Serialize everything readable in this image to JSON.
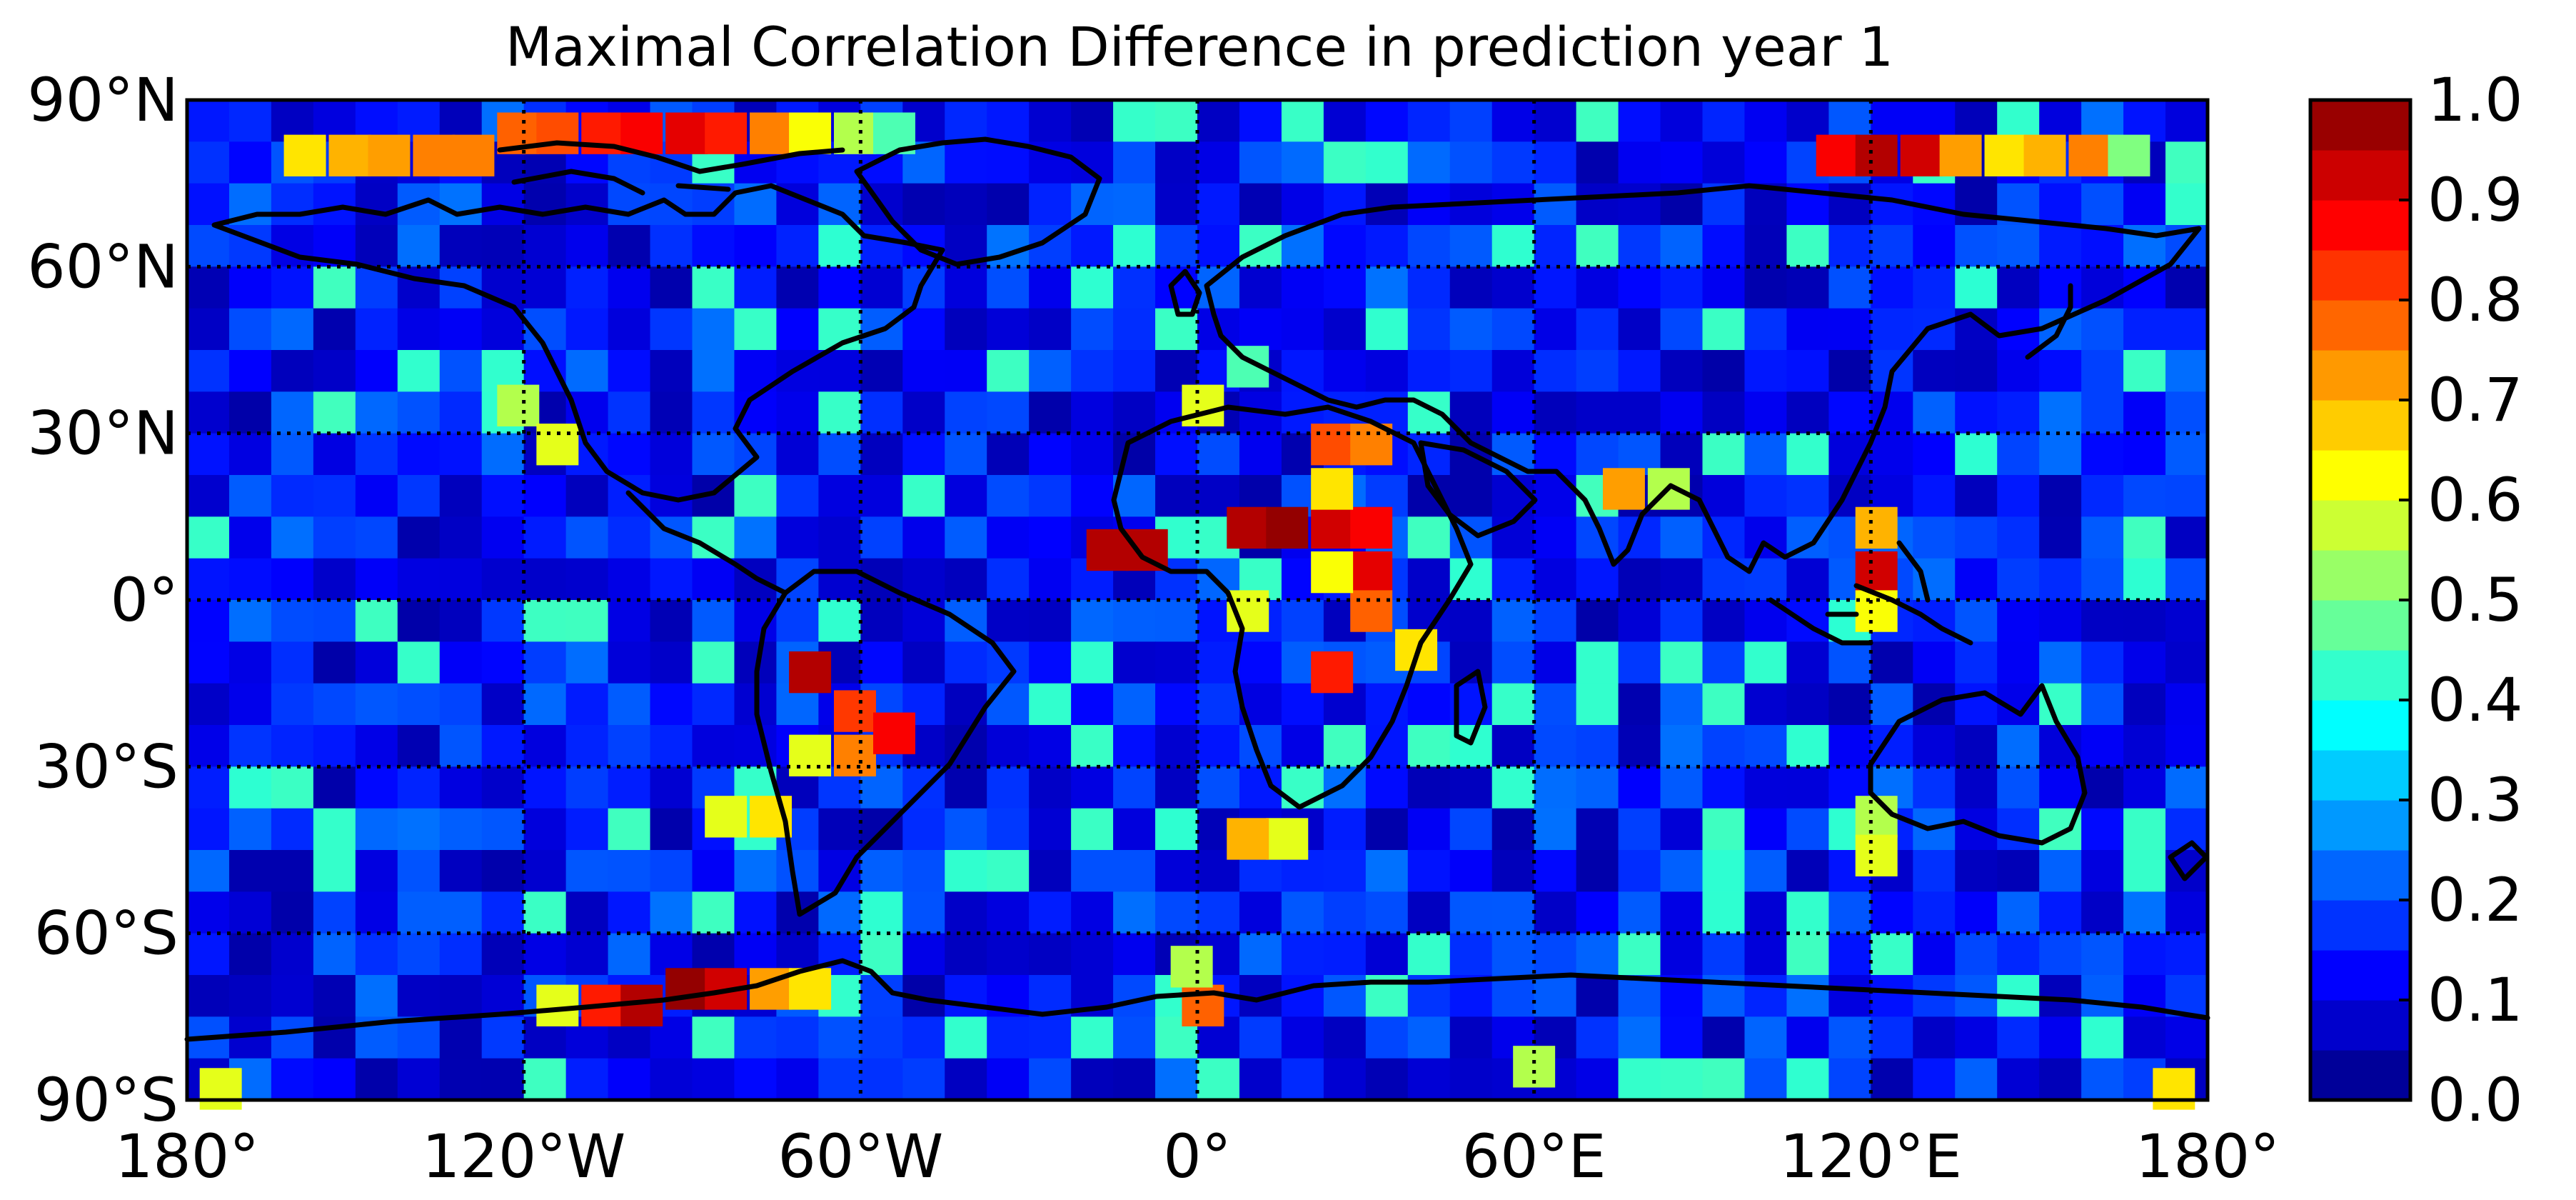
{
  "chart_data": {
    "type": "heatmap",
    "title": "Maximal Correlation Difference in prediction year 1",
    "xlabel": "",
    "ylabel": "",
    "x_range": [
      -180,
      180
    ],
    "y_range": [
      -90,
      90
    ],
    "x_ticks": [
      {
        "value": -180,
        "label": "180°"
      },
      {
        "value": -120,
        "label": "120°W"
      },
      {
        "value": -60,
        "label": "60°W"
      },
      {
        "value": 0,
        "label": "0°"
      },
      {
        "value": 60,
        "label": "60°E"
      },
      {
        "value": 120,
        "label": "120°E"
      },
      {
        "value": 180,
        "label": "180°"
      }
    ],
    "y_ticks": [
      {
        "value": 90,
        "label": "90°N"
      },
      {
        "value": 60,
        "label": "60°N"
      },
      {
        "value": 30,
        "label": "30°N"
      },
      {
        "value": 0,
        "label": "0°"
      },
      {
        "value": -30,
        "label": "30°S"
      },
      {
        "value": -60,
        "label": "60°S"
      },
      {
        "value": -90,
        "label": "90°S"
      }
    ],
    "grid": true,
    "colormap": "jet",
    "colorbar": {
      "vmin": 0.0,
      "vmax": 1.0,
      "n_levels": 20,
      "position": "right",
      "ticks": [
        {
          "value": 0.0,
          "label": "0.0"
        },
        {
          "value": 0.1,
          "label": "0.1"
        },
        {
          "value": 0.2,
          "label": "0.2"
        },
        {
          "value": 0.3,
          "label": "0.3"
        },
        {
          "value": 0.4,
          "label": "0.4"
        },
        {
          "value": 0.5,
          "label": "0.5"
        },
        {
          "value": 0.6,
          "label": "0.6"
        },
        {
          "value": 0.7,
          "label": "0.7"
        },
        {
          "value": 0.8,
          "label": "0.8"
        },
        {
          "value": 0.9,
          "label": "0.9"
        },
        {
          "value": 1.0,
          "label": "1.0"
        }
      ]
    },
    "grid_cell_degrees": 7.5,
    "background_level": 0.15,
    "highlighted_cells": [
      {
        "lon": -159,
        "lat": 80,
        "value": 0.65
      },
      {
        "lon": -151,
        "lat": 80,
        "value": 0.7
      },
      {
        "lon": -144,
        "lat": 80,
        "value": 0.72
      },
      {
        "lon": -136,
        "lat": 80,
        "value": 0.75
      },
      {
        "lon": -129,
        "lat": 80,
        "value": 0.75
      },
      {
        "lon": -121,
        "lat": 84,
        "value": 0.78
      },
      {
        "lon": -114,
        "lat": 84,
        "value": 0.8
      },
      {
        "lon": -106,
        "lat": 84,
        "value": 0.85
      },
      {
        "lon": -99,
        "lat": 84,
        "value": 0.88
      },
      {
        "lon": -91,
        "lat": 84,
        "value": 0.9
      },
      {
        "lon": -84,
        "lat": 84,
        "value": 0.85
      },
      {
        "lon": -76,
        "lat": 84,
        "value": 0.75
      },
      {
        "lon": -69,
        "lat": 84,
        "value": 0.62
      },
      {
        "lon": -61,
        "lat": 84,
        "value": 0.55
      },
      {
        "lon": -54,
        "lat": 84,
        "value": 0.45
      },
      {
        "lon": 114,
        "lat": 80,
        "value": 0.88
      },
      {
        "lon": 121,
        "lat": 80,
        "value": 0.95
      },
      {
        "lon": 129,
        "lat": 80,
        "value": 0.92
      },
      {
        "lon": 136,
        "lat": 80,
        "value": 0.72
      },
      {
        "lon": 144,
        "lat": 80,
        "value": 0.65
      },
      {
        "lon": 151,
        "lat": 80,
        "value": 0.7
      },
      {
        "lon": 159,
        "lat": 80,
        "value": 0.75
      },
      {
        "lon": 166,
        "lat": 80,
        "value": 0.5
      },
      {
        "lon": -16,
        "lat": 9,
        "value": 0.95
      },
      {
        "lon": -9,
        "lat": 9,
        "value": 0.95
      },
      {
        "lon": 9,
        "lat": 13,
        "value": 0.95
      },
      {
        "lon": 16,
        "lat": 13,
        "value": 0.98
      },
      {
        "lon": 24,
        "lat": 13,
        "value": 0.92
      },
      {
        "lon": 31,
        "lat": 13,
        "value": 0.88
      },
      {
        "lon": 24,
        "lat": 28,
        "value": 0.8
      },
      {
        "lon": 31,
        "lat": 28,
        "value": 0.75
      },
      {
        "lon": 24,
        "lat": 20,
        "value": 0.65
      },
      {
        "lon": 31,
        "lat": 5,
        "value": 0.9
      },
      {
        "lon": 31,
        "lat": -2,
        "value": 0.78
      },
      {
        "lon": 24,
        "lat": 5,
        "value": 0.62
      },
      {
        "lon": 9,
        "lat": -2,
        "value": 0.6
      },
      {
        "lon": 39,
        "lat": -9,
        "value": 0.65
      },
      {
        "lon": 24,
        "lat": -13,
        "value": 0.85
      },
      {
        "lon": -69,
        "lat": -13,
        "value": 0.95
      },
      {
        "lon": -61,
        "lat": -20,
        "value": 0.82
      },
      {
        "lon": -61,
        "lat": -28,
        "value": 0.75
      },
      {
        "lon": -54,
        "lat": -24,
        "value": 0.88
      },
      {
        "lon": -69,
        "lat": -28,
        "value": 0.6
      },
      {
        "lon": -76,
        "lat": -39,
        "value": 0.65
      },
      {
        "lon": -84,
        "lat": -39,
        "value": 0.6
      },
      {
        "lon": 121,
        "lat": 13,
        "value": 0.7
      },
      {
        "lon": 121,
        "lat": 5,
        "value": 0.92
      },
      {
        "lon": 121,
        "lat": -2,
        "value": 0.62
      },
      {
        "lon": 76,
        "lat": 20,
        "value": 0.72
      },
      {
        "lon": 84,
        "lat": 20,
        "value": 0.55
      },
      {
        "lon": 1,
        "lat": 35,
        "value": 0.6
      },
      {
        "lon": 9,
        "lat": 42,
        "value": 0.45
      },
      {
        "lon": -121,
        "lat": 35,
        "value": 0.55
      },
      {
        "lon": -114,
        "lat": 28,
        "value": 0.6
      },
      {
        "lon": 16,
        "lat": -43,
        "value": 0.6
      },
      {
        "lon": 9,
        "lat": -43,
        "value": 0.7
      },
      {
        "lon": 121,
        "lat": -39,
        "value": 0.55
      },
      {
        "lon": 121,
        "lat": -46,
        "value": 0.6
      },
      {
        "lon": -106,
        "lat": -73,
        "value": 0.85
      },
      {
        "lon": -99,
        "lat": -73,
        "value": 0.95
      },
      {
        "lon": -91,
        "lat": -70,
        "value": 0.98
      },
      {
        "lon": -84,
        "lat": -70,
        "value": 0.92
      },
      {
        "lon": -76,
        "lat": -70,
        "value": 0.72
      },
      {
        "lon": -69,
        "lat": -70,
        "value": 0.65
      },
      {
        "lon": -114,
        "lat": -73,
        "value": 0.6
      },
      {
        "lon": 1,
        "lat": -73,
        "value": 0.78
      },
      {
        "lon": -1,
        "lat": -66,
        "value": 0.55
      },
      {
        "lon": -174,
        "lat": -88,
        "value": 0.6
      },
      {
        "lon": 174,
        "lat": -88,
        "value": 0.65
      },
      {
        "lon": 60,
        "lat": -84,
        "value": 0.55
      }
    ],
    "annotations": []
  }
}
